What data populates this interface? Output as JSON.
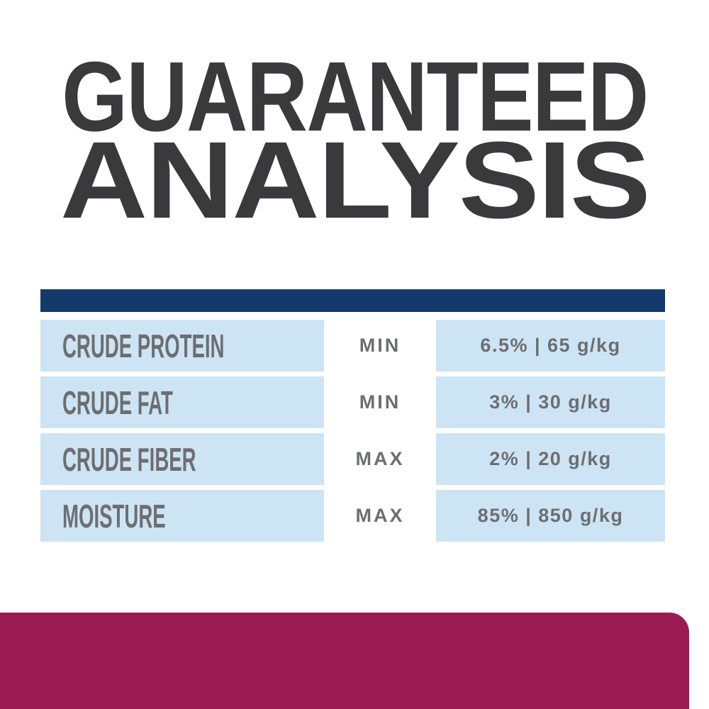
{
  "title": {
    "line1": "GUARANTEED",
    "line2": "ANALYSIS"
  },
  "table": {
    "rows": [
      {
        "name": "CRUDE PROTEIN",
        "limit": "MIN",
        "value": "6.5% | 65 g/kg"
      },
      {
        "name": "CRUDE FAT",
        "limit": "MIN",
        "value": "3% | 30 g/kg"
      },
      {
        "name": "CRUDE FIBER",
        "limit": "MAX",
        "value": "2% | 20 g/kg"
      },
      {
        "name": "MOISTURE",
        "limit": "MAX",
        "value": "85% | 850 g/kg"
      }
    ]
  },
  "colors": {
    "headline": "#3a3a3c",
    "header_bar_navy": "#14396b",
    "row_light_blue": "#cde4f4",
    "text_gray": "#6d6e71",
    "footer_magenta": "#9a1b51",
    "background": "#ffffff"
  }
}
